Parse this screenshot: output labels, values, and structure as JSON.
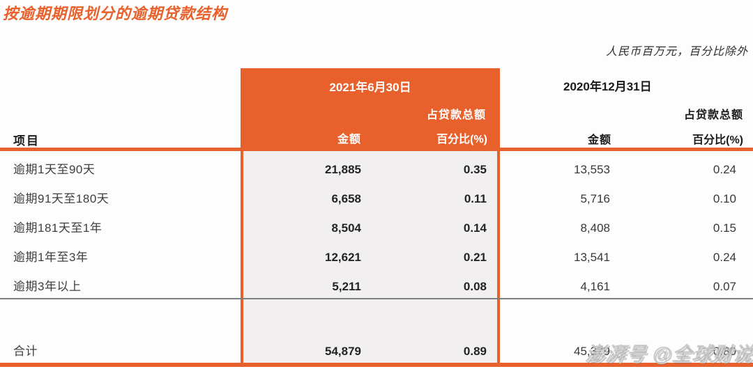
{
  "page": {
    "title": "按逾期期限划分的逾期贷款结构",
    "unit_note": "人民币百万元，百分比除外"
  },
  "table": {
    "item_column_header": "项目",
    "col_2021": {
      "date": "2021年6月30日",
      "amount_header": "金额",
      "pct_header_top": "占贷款总额",
      "pct_header_bottom": "百分比(%)"
    },
    "col_2020": {
      "date": "2020年12月31日",
      "amount_header": "金额",
      "pct_header_top": "占贷款总额",
      "pct_header_bottom": "百分比(%)"
    },
    "rows": [
      {
        "label": "逾期1天至90天",
        "amount_2021": "21,885",
        "pct_2021": "0.35",
        "amount_2020": "13,553",
        "pct_2020": "0.24"
      },
      {
        "label": "逾期91天至180天",
        "amount_2021": "6,658",
        "pct_2021": "0.11",
        "amount_2020": "5,716",
        "pct_2020": "0.10"
      },
      {
        "label": "逾期181天至1年",
        "amount_2021": "8,504",
        "pct_2021": "0.14",
        "amount_2020": "8,408",
        "pct_2020": "0.15"
      },
      {
        "label": "逾期1年至3年",
        "amount_2021": "12,621",
        "pct_2021": "0.21",
        "amount_2020": "13,541",
        "pct_2020": "0.24"
      },
      {
        "label": "逾期3年以上",
        "amount_2021": "5,211",
        "pct_2021": "0.08",
        "amount_2020": "4,161",
        "pct_2020": "0.07"
      }
    ],
    "total_row": {
      "label": "合计",
      "amount_2021": "54,879",
      "pct_2021": "0.89",
      "amount_2020": "45,379",
      "pct_2020": "0.80"
    }
  },
  "watermark": {
    "text": "澎湃号 @全球财说"
  },
  "colors": {
    "accent_orange": "#E8612C",
    "highlight_box_bg": "#F1EFF0",
    "separator_gray": "#7E7E7E",
    "watermark_gray": "#9E9A9E"
  }
}
